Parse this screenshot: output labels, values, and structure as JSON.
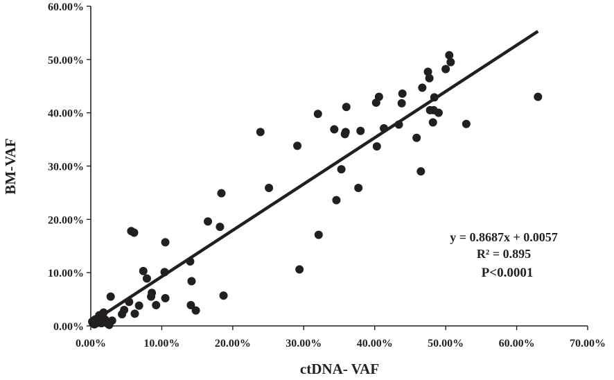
{
  "chart_data": {
    "type": "scatter",
    "xlabel": "ctDNA- VAF",
    "ylabel": "BM-VAF",
    "xlim": [
      0,
      0.7
    ],
    "ylim": [
      0,
      0.6
    ],
    "x_ticks": [
      0,
      0.1,
      0.2,
      0.3,
      0.4,
      0.5,
      0.6,
      0.7
    ],
    "y_ticks": [
      0,
      0.1,
      0.2,
      0.3,
      0.4,
      0.5,
      0.6
    ],
    "x_tick_labels": [
      "0.00%",
      "10.00%",
      "20.00%",
      "30.00%",
      "40.00%",
      "50.00%",
      "60.00%",
      "70.00%"
    ],
    "y_tick_labels": [
      "0.00%",
      "10.00%",
      "20.00%",
      "30.00%",
      "40.00%",
      "50.00%",
      "60.00%"
    ],
    "grid": false,
    "legend": "none",
    "trendline": {
      "slope": 0.8687,
      "intercept": 0.0057,
      "x_range": [
        0,
        0.63
      ]
    },
    "annotations": [
      "y = 0.8687x + 0.0057",
      "R² = 0.895",
      "P<0.0001"
    ],
    "points": [
      [
        0.002,
        0.008
      ],
      [
        0.004,
        0.01
      ],
      [
        0.006,
        0.012
      ],
      [
        0.008,
        0.005
      ],
      [
        0.01,
        0.015
      ],
      [
        0.012,
        0.02
      ],
      [
        0.014,
        0.01
      ],
      [
        0.016,
        0.018
      ],
      [
        0.018,
        0.025
      ],
      [
        0.02,
        0.012
      ],
      [
        0.022,
        0.008
      ],
      [
        0.024,
        0.004
      ],
      [
        0.026,
        0.002
      ],
      [
        0.028,
        0.055
      ],
      [
        0.03,
        0.01
      ],
      [
        0.008,
        0.008
      ],
      [
        0.015,
        0.005
      ],
      [
        0.005,
        0.003
      ],
      [
        0.003,
        0.005
      ],
      [
        0.044,
        0.022
      ],
      [
        0.047,
        0.03
      ],
      [
        0.054,
        0.045
      ],
      [
        0.057,
        0.178
      ],
      [
        0.061,
        0.175
      ],
      [
        0.062,
        0.023
      ],
      [
        0.068,
        0.038
      ],
      [
        0.074,
        0.103
      ],
      [
        0.079,
        0.089
      ],
      [
        0.085,
        0.055
      ],
      [
        0.086,
        0.062
      ],
      [
        0.092,
        0.039
      ],
      [
        0.104,
        0.101
      ],
      [
        0.105,
        0.157
      ],
      [
        0.105,
        0.052
      ],
      [
        0.14,
        0.121
      ],
      [
        0.141,
        0.039
      ],
      [
        0.142,
        0.084
      ],
      [
        0.148,
        0.029
      ],
      [
        0.165,
        0.196
      ],
      [
        0.182,
        0.186
      ],
      [
        0.184,
        0.249
      ],
      [
        0.187,
        0.057
      ],
      [
        0.239,
        0.364
      ],
      [
        0.251,
        0.259
      ],
      [
        0.291,
        0.338
      ],
      [
        0.294,
        0.106
      ],
      [
        0.32,
        0.398
      ],
      [
        0.321,
        0.171
      ],
      [
        0.343,
        0.369
      ],
      [
        0.346,
        0.236
      ],
      [
        0.353,
        0.294
      ],
      [
        0.358,
        0.36
      ],
      [
        0.359,
        0.364
      ],
      [
        0.36,
        0.411
      ],
      [
        0.377,
        0.259
      ],
      [
        0.38,
        0.366
      ],
      [
        0.402,
        0.419
      ],
      [
        0.403,
        0.337
      ],
      [
        0.406,
        0.43
      ],
      [
        0.413,
        0.371
      ],
      [
        0.434,
        0.378
      ],
      [
        0.438,
        0.418
      ],
      [
        0.439,
        0.436
      ],
      [
        0.459,
        0.353
      ],
      [
        0.465,
        0.29
      ],
      [
        0.467,
        0.447
      ],
      [
        0.475,
        0.477
      ],
      [
        0.477,
        0.465
      ],
      [
        0.478,
        0.405
      ],
      [
        0.482,
        0.382
      ],
      [
        0.484,
        0.429
      ],
      [
        0.483,
        0.405
      ],
      [
        0.49,
        0.4
      ],
      [
        0.5,
        0.482
      ],
      [
        0.505,
        0.508
      ],
      [
        0.507,
        0.495
      ],
      [
        0.529,
        0.379
      ],
      [
        0.63,
        0.43
      ]
    ]
  }
}
